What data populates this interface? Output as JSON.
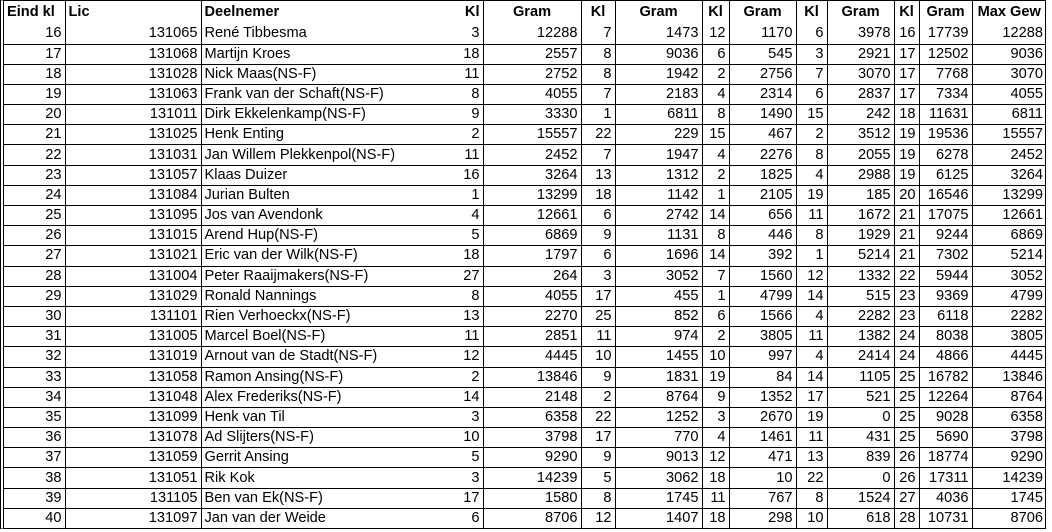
{
  "table": {
    "headers": [
      "Eind kl",
      "Lic",
      "Deelnemer",
      "Kl",
      "Gram",
      "Kl",
      "Gram",
      "Kl",
      "Gram",
      "Kl",
      "Gram",
      "Kl",
      "Gram",
      "Max Gew"
    ],
    "rows": [
      [
        "16",
        "131065",
        "René  Tibbesma",
        "3",
        "12288",
        "7",
        "1473",
        "12",
        "1170",
        "6",
        "3978",
        "16",
        "17739",
        "12288"
      ],
      [
        "17",
        "131068",
        "Martijn  Kroes",
        "18",
        "2557",
        "8",
        "9036",
        "6",
        "545",
        "3",
        "2921",
        "17",
        "12502",
        "9036"
      ],
      [
        "18",
        "131028",
        "Nick  Maas(NS-F)",
        "11",
        "2752",
        "8",
        "1942",
        "2",
        "2756",
        "7",
        "3070",
        "17",
        "7768",
        "3070"
      ],
      [
        "19",
        "131063",
        "Frank van der Schaft(NS-F)",
        "8",
        "4055",
        "7",
        "2183",
        "4",
        "2314",
        "6",
        "2837",
        "17",
        "7334",
        "4055"
      ],
      [
        "20",
        "131011",
        "Dirk  Ekkelenkamp(NS-F)",
        "9",
        "3330",
        "1",
        "6811",
        "8",
        "1490",
        "15",
        "242",
        "18",
        "11631",
        "6811"
      ],
      [
        "21",
        "131025",
        "Henk  Enting",
        "2",
        "15557",
        "22",
        "229",
        "15",
        "467",
        "2",
        "3512",
        "19",
        "19536",
        "15557"
      ],
      [
        "22",
        "131031",
        "Jan Willem  Plekkenpol(NS-F)",
        "11",
        "2452",
        "7",
        "1947",
        "4",
        "2276",
        "8",
        "2055",
        "19",
        "6278",
        "2452"
      ],
      [
        "23",
        "131057",
        "Klaas  Duizer",
        "16",
        "3264",
        "13",
        "1312",
        "2",
        "1825",
        "4",
        "2988",
        "19",
        "6125",
        "3264"
      ],
      [
        "24",
        "131084",
        "Jurian  Bulten",
        "1",
        "13299",
        "18",
        "1142",
        "1",
        "2105",
        "19",
        "185",
        "20",
        "16546",
        "13299"
      ],
      [
        "25",
        "131095",
        "Jos van Avendonk",
        "4",
        "12661",
        "6",
        "2742",
        "14",
        "656",
        "11",
        "1672",
        "21",
        "17075",
        "12661"
      ],
      [
        "26",
        "131015",
        "Arend  Hup(NS-F)",
        "5",
        "6869",
        "9",
        "1131",
        "8",
        "446",
        "8",
        "1929",
        "21",
        "9244",
        "6869"
      ],
      [
        "27",
        "131021",
        "Eric van der Wilk(NS-F)",
        "18",
        "1797",
        "6",
        "1696",
        "14",
        "392",
        "1",
        "5214",
        "21",
        "7302",
        "5214"
      ],
      [
        "28",
        "131004",
        "Peter  Raaijmakers(NS-F)",
        "27",
        "264",
        "3",
        "3052",
        "7",
        "1560",
        "12",
        "1332",
        "22",
        "5944",
        "3052"
      ],
      [
        "29",
        "131029",
        "Ronald  Nannings",
        "8",
        "4055",
        "17",
        "455",
        "1",
        "4799",
        "14",
        "515",
        "23",
        "9369",
        "4799"
      ],
      [
        "30",
        "131101",
        "Rien  Verhoeckx(NS-F)",
        "13",
        "2270",
        "25",
        "852",
        "6",
        "1566",
        "4",
        "2282",
        "23",
        "6118",
        "2282"
      ],
      [
        "31",
        "131005",
        "Marcel  Boel(NS-F)",
        "11",
        "2851",
        "11",
        "974",
        "2",
        "3805",
        "11",
        "1382",
        "24",
        "8038",
        "3805"
      ],
      [
        "32",
        "131019",
        "Arnout van de Stadt(NS-F)",
        "12",
        "4445",
        "10",
        "1455",
        "10",
        "997",
        "4",
        "2414",
        "24",
        "4866",
        "4445"
      ],
      [
        "33",
        "131058",
        "Ramon  Ansing(NS-F)",
        "2",
        "13846",
        "9",
        "1831",
        "19",
        "84",
        "14",
        "1105",
        "25",
        "16782",
        "13846"
      ],
      [
        "34",
        "131048",
        "Alex  Frederiks(NS-F)",
        "14",
        "2148",
        "2",
        "8764",
        "9",
        "1352",
        "17",
        "521",
        "25",
        "12264",
        "8764"
      ],
      [
        "35",
        "131099",
        "Henk van Til",
        "3",
        "6358",
        "22",
        "1252",
        "3",
        "2670",
        "19",
        "0",
        "25",
        "9028",
        "6358"
      ],
      [
        "36",
        "131078",
        "Ad  Slijters(NS-F)",
        "10",
        "3798",
        "17",
        "770",
        "4",
        "1461",
        "11",
        "431",
        "25",
        "5690",
        "3798"
      ],
      [
        "37",
        "131059",
        "Gerrit  Ansing",
        "5",
        "9290",
        "9",
        "9013",
        "12",
        "471",
        "13",
        "839",
        "26",
        "18774",
        "9290"
      ],
      [
        "38",
        "131051",
        "Rik  Kok",
        "3",
        "14239",
        "5",
        "3062",
        "18",
        "10",
        "22",
        "0",
        "26",
        "17311",
        "14239"
      ],
      [
        "39",
        "131105",
        "Ben van Ek(NS-F)",
        "17",
        "1580",
        "8",
        "1745",
        "11",
        "767",
        "8",
        "1524",
        "27",
        "4036",
        "1745"
      ],
      [
        "40",
        "131097",
        "Jan van der Weide",
        "6",
        "8706",
        "12",
        "1407",
        "18",
        "298",
        "10",
        "618",
        "28",
        "10731",
        "8706"
      ]
    ]
  }
}
